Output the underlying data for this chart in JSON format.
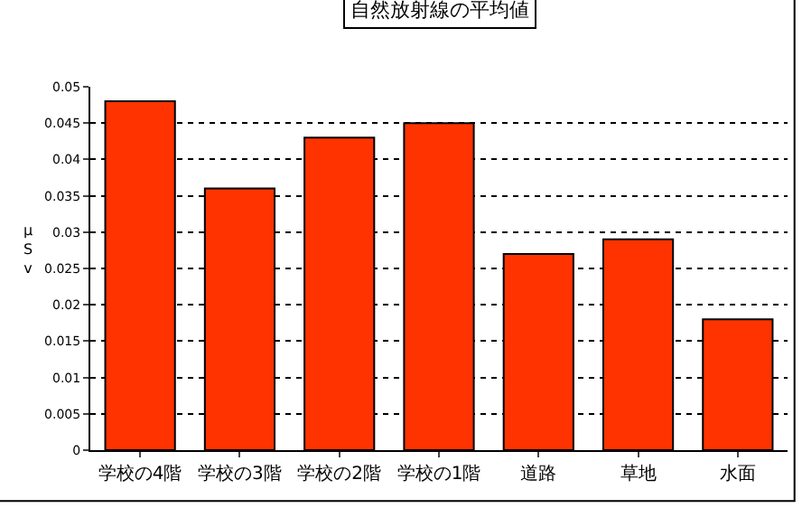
{
  "chart_data": {
    "type": "bar",
    "title": "自然放射線の平均値",
    "ylabel": "μSv",
    "categories": [
      "学校の4階",
      "学校の3階",
      "学校の2階",
      "学校の1階",
      "道路",
      "草地",
      "水面"
    ],
    "values": [
      0.048,
      0.036,
      0.043,
      0.045,
      0.027,
      0.029,
      0.018
    ],
    "color": "#ff3300",
    "ylim": [
      0,
      0.05
    ],
    "yticks": [
      0,
      0.005,
      0.01,
      0.015,
      0.02,
      0.025,
      0.03,
      0.035,
      0.04,
      0.045,
      0.05
    ],
    "grid": "y"
  }
}
